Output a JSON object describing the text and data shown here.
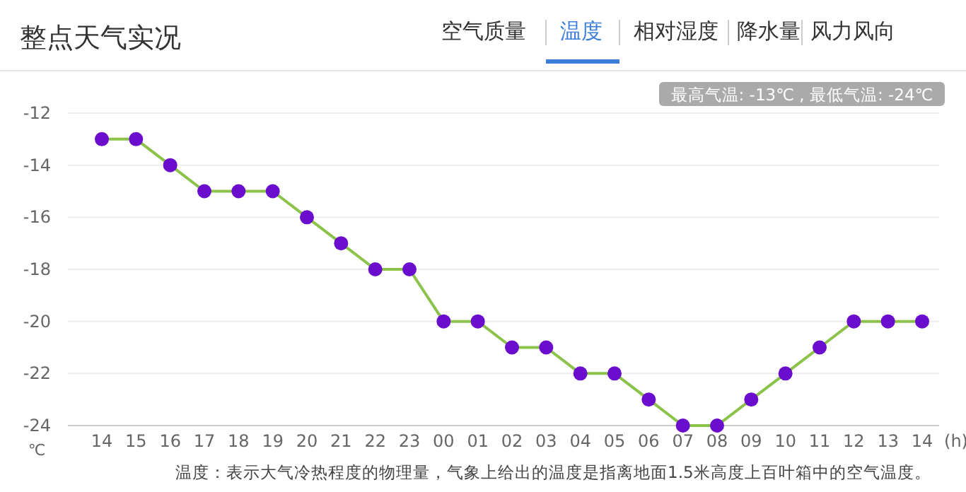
{
  "chart_data": {
    "type": "line",
    "title": "整点天气实况",
    "categories": [
      "14",
      "15",
      "16",
      "17",
      "18",
      "19",
      "20",
      "21",
      "22",
      "23",
      "00",
      "01",
      "02",
      "03",
      "04",
      "05",
      "06",
      "07",
      "08",
      "09",
      "10",
      "11",
      "12",
      "13",
      "14"
    ],
    "series": [
      {
        "color": "#8bc34a",
        "values": [
          -13,
          -13,
          -14,
          -15,
          -15,
          -15,
          -16,
          -17,
          -18,
          -18,
          -20,
          -20,
          -21,
          -21,
          -22,
          -22,
          -23,
          -24,
          -24,
          -23,
          -22,
          -21,
          -20,
          -20,
          -20
        ]
      }
    ],
    "marker": "circle",
    "line_style": "solid",
    "grid": "y",
    "ylim": [
      -24,
      -12
    ],
    "yticks": [
      -24,
      -22,
      -20,
      -18,
      -16,
      -14,
      -12
    ],
    "xlabel": "(h)",
    "ylabel": "℃",
    "annotations": [
      "空气质量",
      "温度",
      "相对湿度",
      "降水量",
      "风力风向",
      "最高气温: -13℃ , 最低气温: -24℃",
      "温度：表示大气冷热程度的物理量，气象上给出的温度是指离地面1.5米高度上百叶箱中的空气温度。"
    ]
  }
}
